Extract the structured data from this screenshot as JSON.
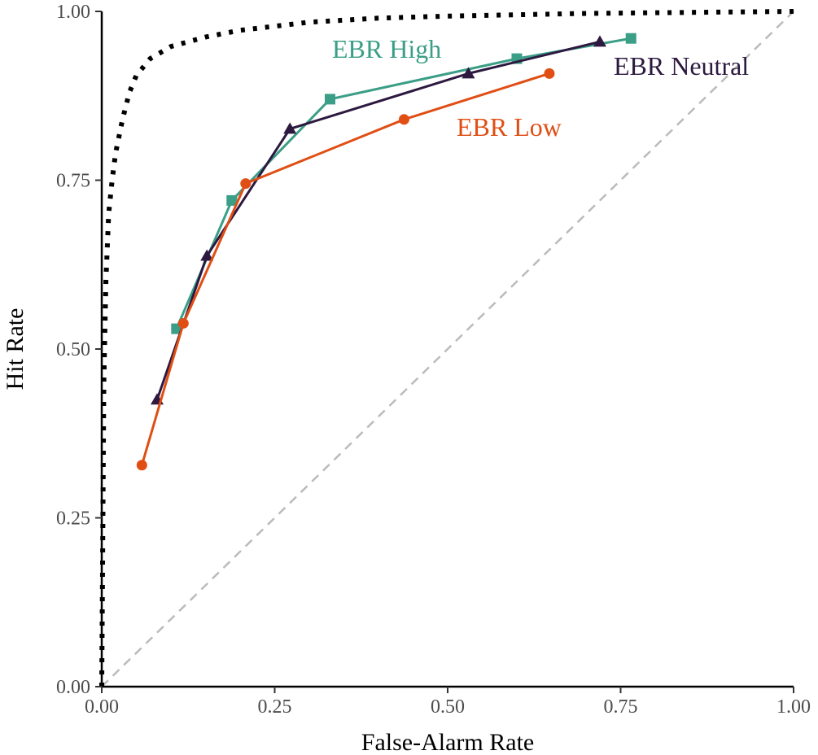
{
  "chart_data": {
    "type": "line",
    "title": "",
    "xlabel": "False-Alarm Rate",
    "ylabel": "Hit Rate",
    "xlim": [
      0,
      1
    ],
    "ylim": [
      0,
      1
    ],
    "xticks": [
      0,
      0.25,
      0.5,
      0.75,
      1
    ],
    "yticks": [
      0,
      0.25,
      0.5,
      0.75,
      1
    ],
    "xtick_labels": [
      "0.00",
      "0.25",
      "0.50",
      "0.75",
      "1.00"
    ],
    "ytick_labels": [
      "0.00",
      "0.25",
      "0.50",
      "0.75",
      "1.00"
    ],
    "grid": false,
    "legend": "direct labels on lines",
    "reference_curve": {
      "style": "dotted",
      "color": "#000000",
      "x": [
        0,
        0.003,
        0.006,
        0.01,
        0.015,
        0.02,
        0.03,
        0.04,
        0.05,
        0.07,
        0.1,
        0.15,
        0.2,
        0.3,
        0.4,
        0.5,
        0.6,
        0.7,
        0.8,
        0.9,
        1.0
      ],
      "y": [
        0,
        0.45,
        0.6,
        0.7,
        0.75,
        0.79,
        0.84,
        0.88,
        0.905,
        0.93,
        0.948,
        0.962,
        0.972,
        0.984,
        0.99,
        0.993,
        0.995,
        0.997,
        0.998,
        0.999,
        1.0
      ]
    },
    "chance_line": {
      "style": "dashed",
      "color": "#bbbbbb",
      "x": [
        0,
        1
      ],
      "y": [
        0,
        1
      ]
    },
    "series": [
      {
        "name": "EBR High",
        "color": "#3b9e86",
        "marker": "square",
        "x": [
          0.108,
          0.188,
          0.33,
          0.6,
          0.765
        ],
        "y": [
          0.53,
          0.72,
          0.87,
          0.93,
          0.96
        ]
      },
      {
        "name": "EBR Neutral",
        "color": "#2d1940",
        "marker": "triangle",
        "x": [
          0.08,
          0.152,
          0.272,
          0.53,
          0.72
        ],
        "y": [
          0.425,
          0.638,
          0.826,
          0.908,
          0.955
        ]
      },
      {
        "name": "EBR Low",
        "color": "#e04e14",
        "marker": "circle",
        "x": [
          0.058,
          0.118,
          0.208,
          0.437,
          0.647
        ],
        "y": [
          0.328,
          0.538,
          0.745,
          0.84,
          0.908
        ]
      }
    ]
  }
}
